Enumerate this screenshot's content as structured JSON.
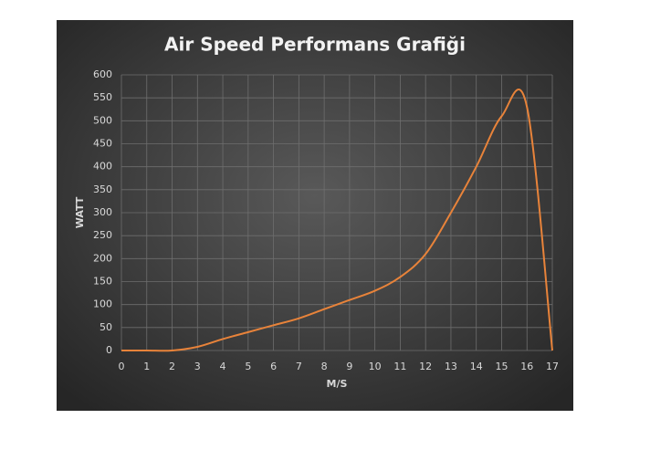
{
  "chart_data": {
    "type": "line",
    "title": "Air Speed Performans Grafiği",
    "x_label": "M/S",
    "y_label": "WATT",
    "x": [
      0,
      1,
      2,
      3,
      4,
      5,
      6,
      7,
      8,
      9,
      10,
      11,
      12,
      13,
      14,
      15,
      16,
      17
    ],
    "series": [
      {
        "name": "Watt",
        "color": "#e8833a",
        "values": [
          0,
          0,
          0,
          8,
          25,
          40,
          55,
          70,
          90,
          110,
          130,
          160,
          210,
          300,
          400,
          510,
          530,
          0
        ]
      }
    ],
    "xlim": [
      0,
      17
    ],
    "xticks": [
      0,
      1,
      2,
      3,
      4,
      5,
      6,
      7,
      8,
      9,
      10,
      11,
      12,
      13,
      14,
      15,
      16,
      17
    ],
    "ylim": [
      0,
      600
    ],
    "yticks": [
      0,
      50,
      100,
      150,
      200,
      250,
      300,
      350,
      400,
      450,
      500,
      550,
      600
    ],
    "grid": true,
    "legend": false
  }
}
